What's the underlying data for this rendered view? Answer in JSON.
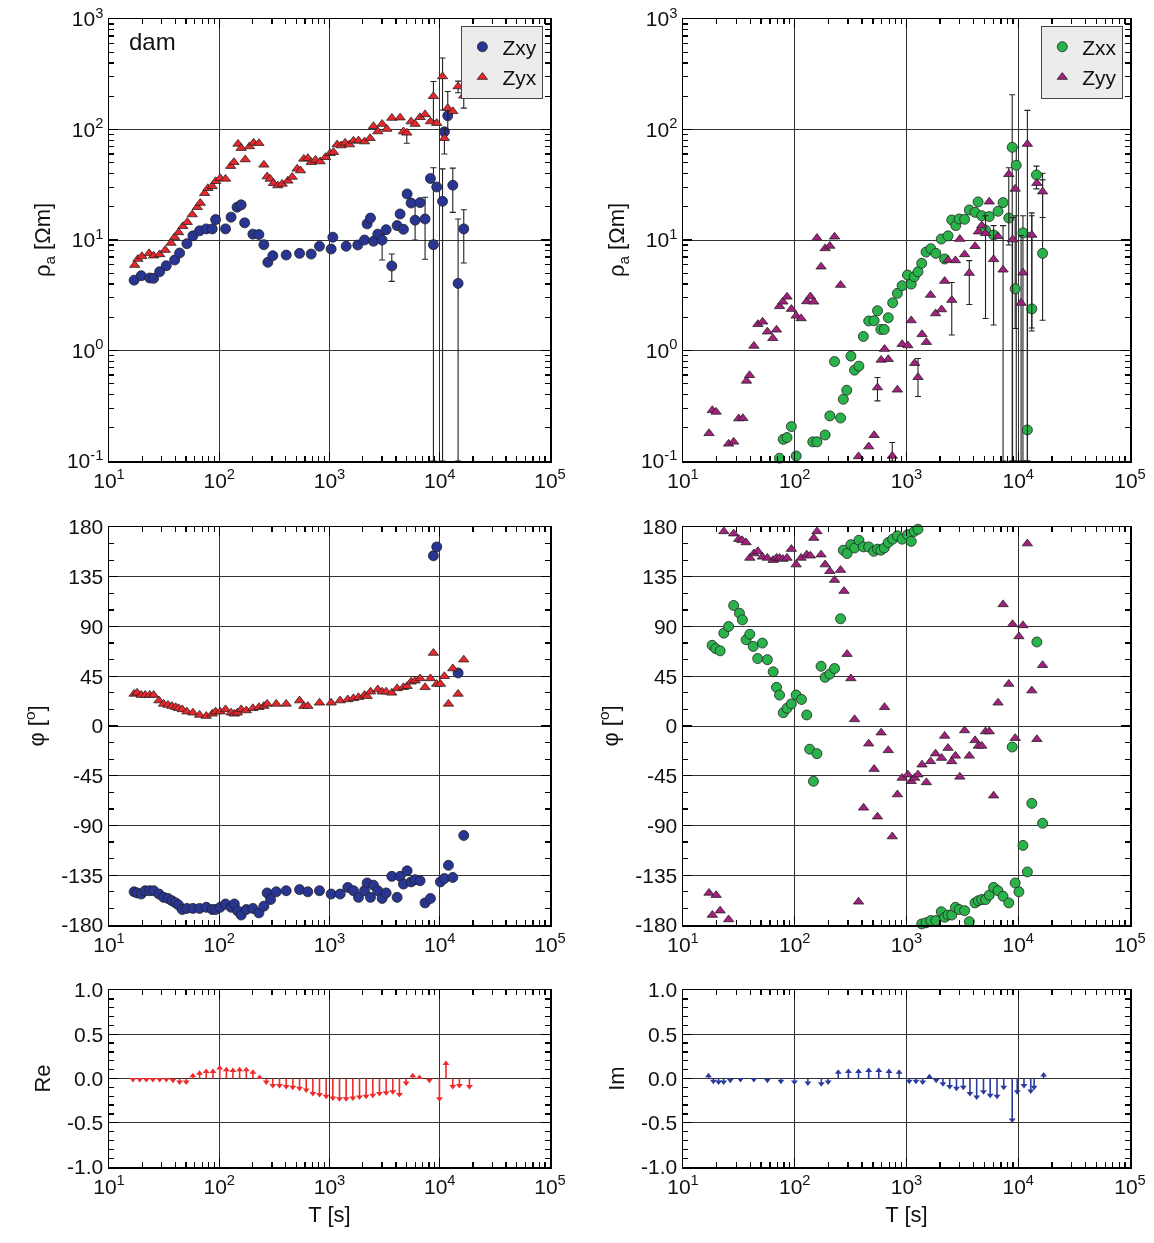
{
  "chart_data": [
    {
      "type": "scatter",
      "log": "xy",
      "grid": true,
      "legend": "top right",
      "ylabel": "ρ$_{a}$ [Ωm]",
      "annotations": [
        "dam"
      ],
      "xlim": [
        10,
        100000
      ],
      "xticks": [
        {
          "value": 10,
          "label": "10$^{1}$"
        },
        {
          "value": 100,
          "label": "10$^{2}$"
        },
        {
          "value": 1000,
          "label": "10$^{3}$"
        },
        {
          "value": 10000,
          "label": "10$^{4}$"
        },
        {
          "value": 100000,
          "label": "10$^{5}$"
        }
      ],
      "ylim": [
        0.1,
        1000
      ],
      "yticks": [
        {
          "value": 0.1,
          "label": "10$^{-1}$"
        },
        {
          "value": 1,
          "label": "10$^{0}$"
        },
        {
          "value": 10,
          "label": "10$^{1}$"
        },
        {
          "value": 100,
          "label": "10$^{2}$"
        },
        {
          "value": 1000,
          "label": "10$^{3}$"
        }
      ],
      "series": [
        {
          "name": "Zxy",
          "color": "#283593",
          "marker": "circle",
          "x": [
            16.9,
            19.6,
            23.4,
            25.4,
            28.8,
            33.1,
            39.4,
            43.7,
            50.9,
            57.7,
            66.3,
            76.2,
            86.4,
            92.7,
            114,
            128,
            145,
            158,
            170,
            202,
            229,
            254,
            276,
            306,
            405,
            535,
            682,
            811,
            1035,
            1072,
            1416,
            1806,
            2077,
            2194,
            2353,
            2505,
            2742,
            3002,
            3264,
            3673,
            4105,
            4368,
            4684,
            5058,
            5500,
            5976,
            6631,
            7359,
            8227,
            8761,
            9389,
            10600,
            11020,
            11820,
            13130,
            14670,
            16510
          ],
          "values": [
            4.33,
            4.75,
            4.53,
            4.5,
            5.16,
            5.85,
            6.59,
            7.62,
            9.27,
            10.9,
            12.1,
            12.6,
            12.6,
            15.3,
            12.6,
            16.1,
            19.8,
            20.8,
            14.3,
            11.3,
            11.2,
            9.07,
            6.28,
            7.21,
            7.31,
            7.57,
            7.46,
            8.78,
            8.29,
            10.6,
            8.78,
            9.01,
            10,
            14,
            15.8,
            9.73,
            11.3,
            10,
            12.4,
            5.81,
            13.5,
            17.2,
            12.5,
            26.1,
            21.6,
            15.1,
            21.8,
            15.5,
            36,
            9.07,
            30.2,
            22.4,
            95.3,
            133,
            31.3,
            4.05,
            12.6
          ],
          "errors": [
            null,
            null,
            null,
            null,
            null,
            null,
            null,
            null,
            null,
            null,
            null,
            null,
            null,
            null,
            null,
            null,
            null,
            null,
            null,
            null,
            null,
            null,
            null,
            null,
            null,
            null,
            null,
            null,
            null,
            null,
            null,
            null,
            null,
            null,
            null,
            null,
            null,
            [
              6.6,
              11.2
            ],
            null,
            [
              4.22,
              7.46
            ],
            null,
            null,
            null,
            null,
            null,
            [
              10,
              21.8
            ],
            null,
            [
              6.7,
              24.4
            ],
            null,
            [
              0.1,
              45
            ],
            null,
            [
              0.1,
              44
            ],
            null,
            null,
            [
              17.8,
              44.7
            ],
            [
              0.1,
              15.5
            ],
            [
              6.2,
              18.8
            ]
          ]
        },
        {
          "name": "Zyx",
          "color": "#e8262b",
          "marker": "triangle",
          "x": [
            17.1,
            18.3,
            19.9,
            23.1,
            25.4,
            28.8,
            32.4,
            36.5,
            39.4,
            42.8,
            46.8,
            51.3,
            56.9,
            63.2,
            67.3,
            73.7,
            78.9,
            86.4,
            92.7,
            102,
            114,
            127,
            136,
            148,
            158,
            172,
            188,
            205,
            229,
            254,
            272,
            290,
            310,
            340,
            372,
            419,
            459,
            509,
            546,
            585,
            636,
            682,
            746,
            823,
            920,
            1014,
            1087,
            1173,
            1275,
            1387,
            1518,
            1650,
            1832,
            2077,
            2337,
            2505,
            2742,
            3002,
            3311,
            3673,
            4368,
            4684,
            5023,
            5500,
            5976,
            6631,
            7359,
            8227,
            8761,
            9389,
            10600,
            11020,
            11820,
            13130,
            14670,
            16510
          ],
          "values": [
            5.93,
            6.73,
            7.11,
            7.57,
            7.21,
            7.41,
            8.11,
            9.4,
            10.6,
            11.7,
            13.3,
            14.5,
            17,
            19.8,
            21.6,
            26.5,
            29.4,
            30.6,
            34,
            36.2,
            35.7,
            46.6,
            50.6,
            74.1,
            67.8,
            53.5,
            70.2,
            75.7,
            75.2,
            47.9,
            37.5,
            35.7,
            32.6,
            31.1,
            32.2,
            34.3,
            37.2,
            44.1,
            42.5,
            54.2,
            55,
            50.6,
            53.1,
            51.3,
            56.1,
            61,
            62.4,
            73.1,
            71.6,
            75.7,
            73.1,
            78.9,
            79.4,
            77.8,
            83.4,
            107,
            95.9,
            112,
            101,
            127,
            128,
            95.9,
            93.3,
            118,
            112,
            129,
            137,
            118,
            200,
            114,
            302,
            83.4,
            156,
            146,
            245,
            202
          ],
          "errors": [
            null,
            null,
            null,
            null,
            null,
            null,
            null,
            null,
            null,
            null,
            null,
            null,
            null,
            null,
            null,
            null,
            null,
            null,
            null,
            null,
            null,
            null,
            null,
            null,
            null,
            null,
            null,
            null,
            null,
            null,
            null,
            null,
            null,
            null,
            null,
            null,
            null,
            null,
            null,
            null,
            null,
            null,
            null,
            null,
            null,
            null,
            null,
            null,
            null,
            null,
            null,
            null,
            null,
            null,
            null,
            null,
            null,
            null,
            null,
            null,
            null,
            null,
            [
              75.2,
              100
            ],
            null,
            null,
            null,
            null,
            null,
            [
              120,
              272
            ],
            null,
            [
              150,
              443
            ],
            [
              60.1,
              101
            ],
            [
              100,
              221
            ],
            null,
            [
              215,
              274
            ],
            [
              156,
              234
            ]
          ]
        }
      ]
    },
    {
      "type": "scatter",
      "log": "xy",
      "grid": true,
      "legend": "top right",
      "ylabel": "ρ$_{a}$ [Ωm]",
      "xlim": [
        10,
        100000
      ],
      "xticks": [
        {
          "value": 10,
          "label": "10$^{1}$"
        },
        {
          "value": 100,
          "label": "10$^{2}$"
        },
        {
          "value": 1000,
          "label": "10$^{3}$"
        },
        {
          "value": 10000,
          "label": "10$^{4}$"
        },
        {
          "value": 100000,
          "label": "10$^{5}$"
        }
      ],
      "ylim": [
        0.1,
        1000
      ],
      "yticks": [
        {
          "value": 0.1,
          "label": "10$^{-1}$"
        },
        {
          "value": 1,
          "label": "10$^{0}$"
        },
        {
          "value": 10,
          "label": "10$^{1}$"
        },
        {
          "value": 100,
          "label": "10$^{2}$"
        },
        {
          "value": 1000,
          "label": "10$^{3}$"
        }
      ],
      "series": [
        {
          "name": "Zxx",
          "color": "#2ab24b",
          "marker": "circle",
          "x": [
            73.1,
            78.9,
            85.3,
            93.3,
            103,
            145,
            158,
            187,
            206,
            227,
            257,
            272,
            292,
            318,
            343,
            375,
            411,
            459,
            513,
            550,
            589,
            632,
            687,
            752,
            829,
            914,
            1021,
            1102,
            1173,
            1267,
            1368,
            1497,
            1650,
            1832,
            2047,
            2194,
            2353,
            2541,
            2762,
            2960,
            3311,
            3648,
            4105,
            4368,
            4716,
            5094,
            5500,
            6017,
            6592,
            7311,
            8227,
            8830,
            9389,
            9600,
            11020,
            12070,
            13220,
            14560,
            16510
          ],
          "values": [
            0.106,
            0.157,
            0.163,
            0.205,
            0.111,
            0.149,
            0.149,
            0.172,
            0.256,
            0.794,
            0.245,
            0.362,
            0.437,
            0.889,
            0.664,
            0.722,
            1.34,
            1.85,
            1.86,
            2.29,
            1.55,
            1.55,
            1.98,
            2.7,
            3.29,
            3.86,
            4.82,
            3.99,
            4.65,
            5.16,
            6.15,
            7.78,
            8.34,
            7.57,
            10.2,
            6.73,
            10.9,
            15.2,
            13.5,
            15.5,
            15.4,
            18.7,
            17.8,
            22.1,
            16.6,
            12.3,
            16.3,
            11.1,
            18.2,
            21.8,
            15.8,
            69,
            3.62,
            47.5,
            11.6,
            0.191,
            2.38,
            38.8,
            7.57
          ],
          "errors": [
            null,
            null,
            null,
            null,
            null,
            null,
            null,
            null,
            null,
            null,
            null,
            null,
            null,
            null,
            null,
            null,
            null,
            null,
            null,
            null,
            null,
            null,
            null,
            null,
            null,
            null,
            null,
            null,
            null,
            null,
            null,
            null,
            null,
            null,
            null,
            null,
            null,
            null,
            null,
            null,
            null,
            null,
            null,
            null,
            null,
            null,
            null,
            null,
            null,
            null,
            null,
            [
              0.1,
              206
            ],
            [
              1.58,
              16.6
            ],
            [
              0.1,
              69
            ],
            [
              0.1,
              16.6
            ],
            [
              0.1,
              11.6
            ],
            [
              1.5,
              17.6
            ],
            [
              29,
              46.6
            ],
            [
              1.88,
              40.2
            ]
          ]
        },
        {
          "name": "Zyy",
          "color": "#a3207f",
          "marker": "triangle",
          "x": [
            17.1,
            18.3,
            19.8,
            25.6,
            28.4,
            31.5,
            34.3,
            37,
            39.4,
            43.1,
            46.8,
            51.6,
            56.9,
            63.6,
            68.7,
            73.1,
            78.3,
            85.3,
            93.3,
            103,
            114,
            128,
            138,
            148,
            158,
            172,
            187,
            206,
            227,
            257,
            372,
            459,
            513,
            550,
            593,
            636,
            687,
            746,
            829,
            914,
            1028,
            1102,
            1183,
            1267,
            1377,
            1507,
            1641,
            1820,
            2061,
            2194,
            2353,
            2541,
            2742,
            3002,
            3311,
            3648,
            4105,
            4395,
            4716,
            5094,
            5500,
            6017,
            6592,
            7311,
            8227,
            8892,
            9389,
            10600,
            11020,
            12070,
            13220,
            14670,
            16510
          ],
          "values": [
            0.178,
            0.288,
            0.278,
            0.143,
            0.149,
            0.242,
            0.244,
            0.531,
            0.597,
            1.1,
            1.73,
            1.82,
            1.48,
            1.29,
            1.54,
            2.51,
            2.76,
            3.06,
            2.37,
            2.06,
            1.95,
            2.78,
            3.08,
            2.76,
            10.4,
            5.73,
            8.39,
            8.83,
            10.7,
            3.91,
            0.11,
            0.135,
            0.171,
            0.462,
            0.822,
            1.03,
            0.834,
            0.111,
            0.441,
            1.14,
            1.11,
            1.87,
            0.767,
            0.573,
            1.4,
            1.19,
            3.18,
            2.16,
            2.35,
            4.25,
            6.58,
            2.86,
            6.53,
            10.2,
            7.41,
            5.02,
            8.78,
            11.9,
            13.5,
            11.5,
            22.2,
            6.68,
            10.8,
            5.38,
            39.4,
            10.1,
            29,
            2.69,
            5.06,
            73.8,
            11.1,
            32.7,
            27.4
          ],
          "errors": [
            null,
            null,
            null,
            null,
            null,
            null,
            null,
            null,
            null,
            null,
            null,
            null,
            null,
            null,
            null,
            null,
            null,
            null,
            null,
            null,
            null,
            null,
            null,
            null,
            null,
            null,
            null,
            null,
            null,
            null,
            null,
            null,
            null,
            [
              0.35,
              0.569
            ],
            null,
            null,
            null,
            [
              0.1,
              0.147
            ],
            null,
            null,
            null,
            null,
            null,
            [
              0.383,
              0.847
            ],
            null,
            null,
            null,
            null,
            null,
            null,
            null,
            [
              1.38,
              4.13
            ],
            null,
            null,
            null,
            [
              2.61,
              6.5
            ],
            null,
            null,
            null,
            [
              1.95,
              16.6
            ],
            null,
            [
              1.7,
              13.5
            ],
            null,
            [
              0.1,
              13.5
            ],
            [
              9,
              45
            ],
            [
              0.1,
              16
            ],
            null,
            [
              0.1,
              11
            ],
            null,
            [
              0.1,
              149
            ],
            [
              1.6,
              16.6
            ],
            null,
            [
              16,
              35
            ]
          ]
        }
      ]
    },
    {
      "type": "scatter",
      "log": "x",
      "grid": true,
      "ylabel": "φ [$^{o}$]",
      "xlim": [
        10,
        100000
      ],
      "xticks": [
        {
          "value": 10,
          "label": "10$^{1}$"
        },
        {
          "value": 100,
          "label": "10$^{2}$"
        },
        {
          "value": 1000,
          "label": "10$^{3}$"
        },
        {
          "value": 10000,
          "label": "10$^{4}$"
        },
        {
          "value": 100000,
          "label": "10$^{5}$"
        }
      ],
      "ylim": [
        -180,
        180
      ],
      "yticks": [
        -180,
        -135,
        -90,
        -45,
        0,
        45,
        90,
        135,
        180
      ],
      "series": [
        {
          "color": "#283593",
          "marker": "circle",
          "x": [
            16.9,
            18,
            19.6,
            21.3,
            23.4,
            25.4,
            28.4,
            31.3,
            34.3,
            37.2,
            40.2,
            42.8,
            46.2,
            50.9,
            57.7,
            66.3,
            76.2,
            86.4,
            92.7,
            102,
            114,
            128,
            137,
            146,
            158,
            176,
            202,
            229,
            254,
            272,
            292,
            329,
            405,
            535,
            636,
            811,
            1035,
            1250,
            1466,
            1650,
            1832,
            2077,
            2194,
            2353,
            2505,
            2742,
            3002,
            3264,
            3673,
            4105,
            4368,
            4684,
            5058,
            5500,
            5976,
            6631,
            7359,
            8227,
            8761,
            9389,
            10140,
            11020,
            11990,
            13130,
            14670,
            16510
          ],
          "values": [
            -150,
            -151,
            -152,
            -149,
            -149,
            -149,
            -152,
            -155,
            -156,
            -158,
            -160,
            -162,
            -166,
            -165,
            -165,
            -165,
            -164,
            -166,
            -166,
            -164,
            -161,
            -164,
            -161,
            -167,
            -171,
            -166,
            -165,
            -169,
            -163,
            -151,
            -157,
            -150,
            -149,
            -148,
            -150,
            -149,
            -152,
            -152,
            -146,
            -149,
            -155,
            -149,
            -142,
            -155,
            -144,
            -149,
            -156,
            -151,
            -136,
            -155,
            -136,
            -143,
            -131,
            -141,
            -139,
            -140,
            -160,
            -156,
            154,
            162,
            -141,
            -138,
            -126,
            -137,
            48,
            -99
          ]
        },
        {
          "color": "#e8262b",
          "marker": "triangle",
          "x": [
            16.9,
            18,
            19.6,
            21.3,
            23.4,
            25.4,
            28.4,
            31.3,
            34.3,
            37.2,
            40.2,
            42.8,
            46.2,
            50.9,
            57.7,
            66.3,
            76.2,
            86.4,
            92.7,
            102,
            114,
            128,
            137,
            146,
            158,
            176,
            202,
            229,
            254,
            272,
            329,
            405,
            535,
            585,
            636,
            811,
            1035,
            1250,
            1466,
            1650,
            1832,
            2077,
            2194,
            2353,
            2742,
            3002,
            3264,
            3673,
            4105,
            4684,
            5058,
            5500,
            5976,
            6631,
            7359,
            8227,
            8761,
            9389,
            10140,
            11020,
            11990,
            13130,
            14670,
            16510
          ],
          "values": [
            29,
            30,
            28,
            28,
            28,
            28,
            23,
            20,
            19,
            18,
            17,
            16,
            15,
            13,
            12,
            10,
            9,
            11,
            13,
            13,
            15,
            12,
            11,
            12,
            15,
            14,
            16,
            17,
            18,
            20,
            20,
            20,
            23,
            18,
            18,
            21,
            21,
            23,
            24,
            25,
            26,
            28,
            27,
            31,
            33,
            31,
            31,
            30,
            34,
            35,
            36,
            40,
            41,
            43,
            35,
            43,
            66,
            38,
            38,
            45,
            20,
            52,
            29,
            60
          ]
        }
      ]
    },
    {
      "type": "scatter",
      "log": "x",
      "grid": true,
      "ylabel": "φ [$^{o}$]",
      "xlim": [
        10,
        100000
      ],
      "xticks": [
        {
          "value": 10,
          "label": "10$^{1}$"
        },
        {
          "value": 100,
          "label": "10$^{2}$"
        },
        {
          "value": 1000,
          "label": "10$^{3}$"
        },
        {
          "value": 10000,
          "label": "10$^{4}$"
        },
        {
          "value": 100000,
          "label": "10$^{5}$"
        }
      ],
      "ylim": [
        -180,
        180
      ],
      "yticks": [
        -180,
        -135,
        -90,
        -45,
        0,
        45,
        90,
        135,
        180
      ],
      "series": [
        {
          "color": "#2ab24b",
          "marker": "circle",
          "x": [
            18.2,
            19.6,
            21.5,
            23.2,
            25.6,
            28.4,
            32,
            34,
            36.7,
            39.6,
            42.5,
            46.6,
            51.3,
            56.9,
            64.1,
            68.7,
            73.1,
            78.9,
            85.3,
            93.3,
            103,
            115,
            128,
            136,
            147,
            158,
            172,
            187,
            206,
            227,
            257,
            272,
            294,
            318,
            343,
            375,
            411,
            459,
            509,
            550,
            589,
            632,
            687,
            752,
            829,
            914,
            1021,
            1102,
            1173,
            1267,
            1368,
            1497,
            1650,
            1832,
            2047,
            2194,
            2353,
            2541,
            2742,
            2960,
            3311,
            3648,
            4105,
            4395,
            4716,
            5094,
            5500,
            6017,
            6592,
            7311,
            8227,
            8830,
            9389,
            10140,
            11020,
            12070,
            13220,
            14670,
            16510
          ],
          "values": [
            73,
            70,
            68,
            84,
            90,
            109,
            102,
            96,
            78,
            83,
            72,
            61,
            75,
            60,
            49,
            35,
            28,
            12,
            16,
            20,
            28,
            24,
            10,
            -21,
            -50,
            -25,
            54,
            44,
            47,
            52,
            97,
            159,
            156,
            164,
            161,
            168,
            162,
            162,
            158,
            160,
            159,
            161,
            166,
            169,
            172,
            169,
            173,
            167,
            176,
            178,
            -179,
            -178,
            -176,
            -176,
            -168,
            -173,
            -171,
            -171,
            -164,
            -166,
            -167,
            -177,
            -160,
            -158,
            -157,
            -157,
            -153,
            -146,
            -149,
            -154,
            -160,
            -19,
            -142,
            -150,
            -108,
            -132,
            -70,
            76,
            -88
          ]
        },
        {
          "color": "#a3207f",
          "marker": "triangle",
          "x": [
            17.1,
            18.3,
            19.8,
            21.5,
            23.2,
            25.6,
            28.4,
            31.5,
            33.8,
            36.7,
            39.6,
            43.1,
            46.8,
            51.3,
            56.9,
            64.1,
            68.7,
            73.1,
            78.3,
            85.3,
            93.3,
            103,
            114,
            128,
            138,
            148,
            158,
            172,
            187,
            206,
            227,
            257,
            276,
            294,
            318,
            343,
            372,
            413,
            459,
            513,
            550,
            593,
            636,
            687,
            746,
            829,
            914,
            1028,
            1102,
            1183,
            1267,
            1377,
            1507,
            1641,
            1820,
            2061,
            2194,
            2353,
            2541,
            2742,
            3002,
            3311,
            3648,
            4105,
            4395,
            4716,
            5094,
            5500,
            6017,
            6592,
            7311,
            8227,
            8892,
            9389,
            10140,
            11020,
            12070,
            13220,
            14670,
            16510
          ],
          "values": [
            -151,
            -171,
            -153,
            -167,
            176,
            -175,
            174,
            169,
            168,
            166,
            152,
            156,
            158,
            153,
            152,
            150,
            152,
            152,
            151,
            152,
            160,
            146,
            152,
            155,
            154,
            170,
            176,
            155,
            146,
            140,
            132,
            141,
            122,
            65,
            43,
            6,
            -159,
            -74,
            -16,
            -39,
            -82,
            -6,
            17,
            -22,
            -100,
            -62,
            -47,
            -44,
            -50,
            -47,
            -44,
            -35,
            -51,
            -32,
            -25,
            -29,
            -9,
            -20,
            -32,
            -27,
            -46,
            -4,
            -27,
            -13,
            -18,
            -18,
            -5,
            -5,
            -63,
            21,
            110,
            38,
            92,
            -11,
            81,
            91,
            165,
            32,
            -12,
            55
          ]
        }
      ]
    },
    {
      "type": "lollipop",
      "log": "x",
      "grid": true,
      "ylabel": "Re",
      "xlabel": "T [s]",
      "xlim": [
        10,
        100000
      ],
      "xticks": [
        {
          "value": 10,
          "label": "10$^{1}$"
        },
        {
          "value": 100,
          "label": "10$^{2}$"
        },
        {
          "value": 1000,
          "label": "10$^{3}$"
        },
        {
          "value": 10000,
          "label": "10$^{4}$"
        },
        {
          "value": 100000,
          "label": "10$^{5}$"
        }
      ],
      "ylim": [
        -1,
        1
      ],
      "yticks": [
        {
          "value": -1,
          "label": "-1.0"
        },
        {
          "value": -0.5,
          "label": "-0.5"
        },
        {
          "value": 0,
          "label": "0.0"
        },
        {
          "value": 0.5,
          "label": "0.5"
        },
        {
          "value": 1,
          "label": "1.0"
        }
      ],
      "series": [
        {
          "color": "#ee2a2a",
          "marker": "triangle",
          "x": [
            16.5,
            19,
            21.8,
            25,
            28.8,
            33.1,
            38,
            43.7,
            50.2,
            57.7,
            66.3,
            76.2,
            87.7,
            101,
            116,
            133,
            153,
            176,
            202,
            232,
            267,
            306,
            352,
            405,
            465,
            535,
            615,
            706,
            811,
            933,
            1072,
            1232,
            1416,
            1627,
            1871,
            2149,
            2470,
            2839,
            3264,
            3750,
            4306,
            4955,
            5689,
            6546,
            8054,
            9931,
            11400,
            13130,
            15070,
            18580
          ],
          "values": [
            -0.01,
            -0.01,
            -0.01,
            -0.01,
            -0.01,
            -0.01,
            -0.02,
            -0.04,
            -0.04,
            0.03,
            0.06,
            0.08,
            0.08,
            0.12,
            0.1,
            0.09,
            0.1,
            0.1,
            0.07,
            0.01,
            -0.04,
            -0.08,
            -0.08,
            -0.09,
            -0.1,
            -0.11,
            -0.13,
            -0.17,
            -0.18,
            -0.2,
            -0.22,
            -0.23,
            -0.23,
            -0.22,
            -0.21,
            -0.2,
            -0.19,
            -0.17,
            -0.16,
            -0.15,
            -0.18,
            -0.05,
            0.03,
            0.01,
            -0.02,
            -0.23,
            0.17,
            -0.09,
            -0.08,
            -0.09
          ]
        }
      ]
    },
    {
      "type": "lollipop",
      "log": "x",
      "grid": true,
      "ylabel": "Im",
      "xlabel": "T [s]",
      "xlim": [
        10,
        100000
      ],
      "xticks": [
        {
          "value": 10,
          "label": "10$^{1}$"
        },
        {
          "value": 100,
          "label": "10$^{2}$"
        },
        {
          "value": 1000,
          "label": "10$^{3}$"
        },
        {
          "value": 10000,
          "label": "10$^{4}$"
        },
        {
          "value": 100000,
          "label": "10$^{5}$"
        }
      ],
      "ylim": [
        -1,
        1
      ],
      "yticks": [
        {
          "value": -1,
          "label": "-1.0"
        },
        {
          "value": -0.5,
          "label": "-0.5"
        },
        {
          "value": 0,
          "label": "0.0"
        },
        {
          "value": 0.5,
          "label": "0.5"
        },
        {
          "value": 1,
          "label": "1.0"
        }
      ],
      "series": [
        {
          "color": "#2b3a9e",
          "marker": "triangle",
          "x": [
            16.9,
            18.7,
            20.8,
            23.1,
            26.5,
            32.7,
            43.1,
            56.9,
            75.2,
            99.4,
            131,
            173,
            199,
            245,
            302,
            372,
            459,
            565,
            697,
            859,
            1057,
            1216,
            1397,
            1604,
            1845,
            2119,
            2436,
            2800,
            3221,
            3698,
            4246,
            4887,
            5610,
            6457,
            7413,
            8830,
            9795,
            11250,
            12940,
            13870,
            16870
          ],
          "values": [
            0.03,
            -0.03,
            -0.04,
            -0.04,
            -0.02,
            -0.01,
            -0.01,
            -0.02,
            -0.03,
            -0.04,
            -0.05,
            -0.06,
            -0.04,
            0.07,
            0.08,
            0.08,
            0.09,
            0.09,
            0.08,
            0.07,
            -0.03,
            -0.03,
            -0.04,
            0.02,
            -0.02,
            -0.06,
            -0.09,
            -0.11,
            -0.1,
            -0.17,
            -0.21,
            -0.15,
            -0.19,
            -0.2,
            -0.1,
            -0.47,
            -0.15,
            -0.08,
            -0.14,
            -0.1,
            0.04
          ]
        }
      ]
    }
  ]
}
